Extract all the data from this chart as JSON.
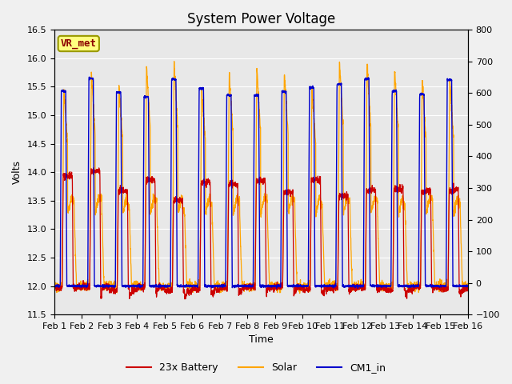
{
  "title": "System Power Voltage",
  "xlabel": "Time",
  "ylabel_left": "Volts",
  "ylabel_right": "",
  "ylim_left": [
    11.5,
    16.5
  ],
  "ylim_right": [
    -100,
    800
  ],
  "yticks_left": [
    11.5,
    12.0,
    12.5,
    13.0,
    13.5,
    14.0,
    14.5,
    15.0,
    15.5,
    16.0,
    16.5
  ],
  "yticks_right": [
    -100,
    0,
    100,
    200,
    300,
    400,
    500,
    600,
    700,
    800
  ],
  "num_days": 15,
  "annotation_text": "VR_met",
  "annotation_box_color": "#ffff80",
  "annotation_text_color": "#8b0000",
  "annotation_border_color": "#999900",
  "battery_color": "#cc0000",
  "solar_color": "#ffa500",
  "cm1_color": "#0000cc",
  "plot_bg_color": "#e8e8e8",
  "fig_bg_color": "#f0f0f0",
  "grid_color": "#ffffff",
  "legend_battery": "23x Battery",
  "legend_solar": "Solar",
  "legend_cm1": "CM1_in",
  "title_fontsize": 12,
  "axis_label_fontsize": 9,
  "tick_label_fontsize": 8,
  "legend_fontsize": 9
}
